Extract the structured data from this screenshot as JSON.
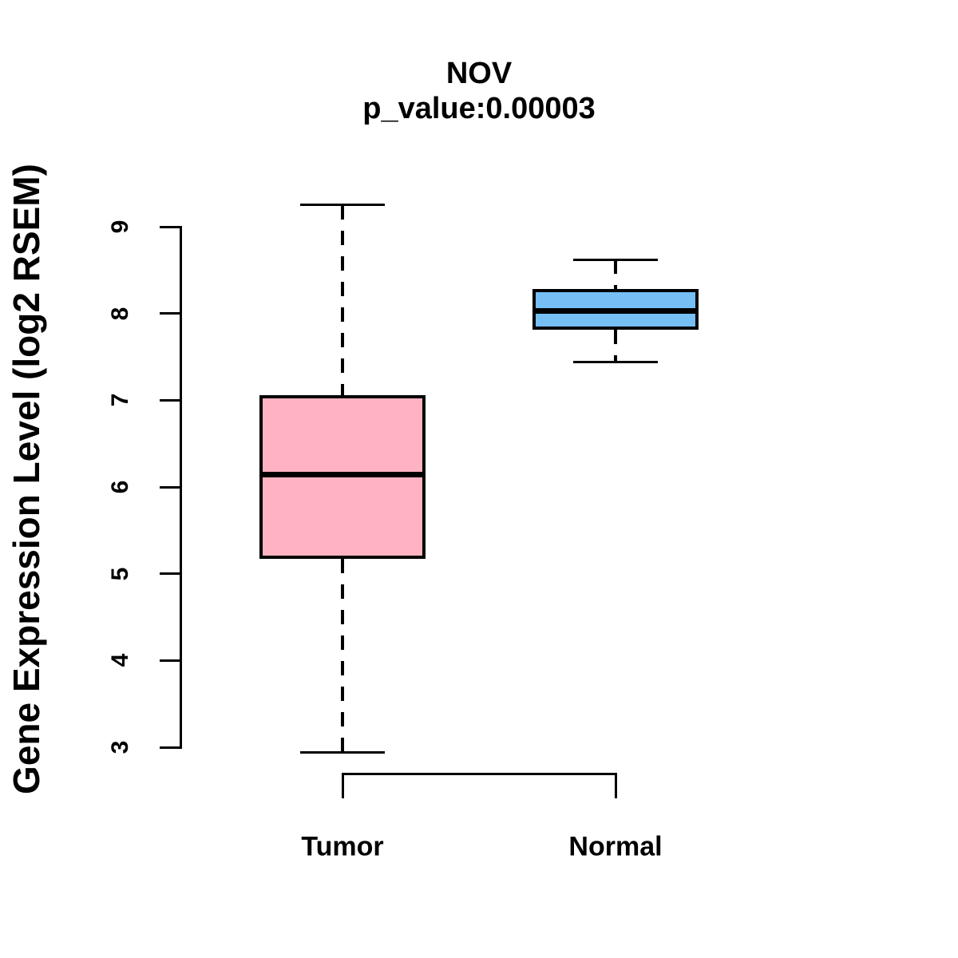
{
  "chart_data": {
    "type": "boxplot",
    "title": "NOV",
    "subtitle": "p_value:0.00003",
    "ylabel": "Gene Expression Level (log2 RSEM)",
    "xlabel": "",
    "categories": [
      "Tumor",
      "Normal"
    ],
    "series": [
      {
        "name": "Tumor",
        "color": "#FFB3C2",
        "whisker_low": 2.94,
        "q1": 5.17,
        "median": 6.14,
        "q3": 7.06,
        "whisker_high": 9.25
      },
      {
        "name": "Normal",
        "color": "#75BFF5",
        "whisker_low": 7.44,
        "q1": 7.81,
        "median": 8.03,
        "q3": 8.28,
        "whisker_high": 8.62
      }
    ],
    "ylim": [
      3,
      9
    ],
    "yticks": [
      3,
      4,
      5,
      6,
      7,
      8,
      9
    ],
    "grid": false,
    "legend": false,
    "styles": {
      "background": "#FFFFFF",
      "text_color": "#000000",
      "box_border_color": "#000000",
      "median_color": "#000000",
      "whisker_style": "dashed"
    }
  }
}
